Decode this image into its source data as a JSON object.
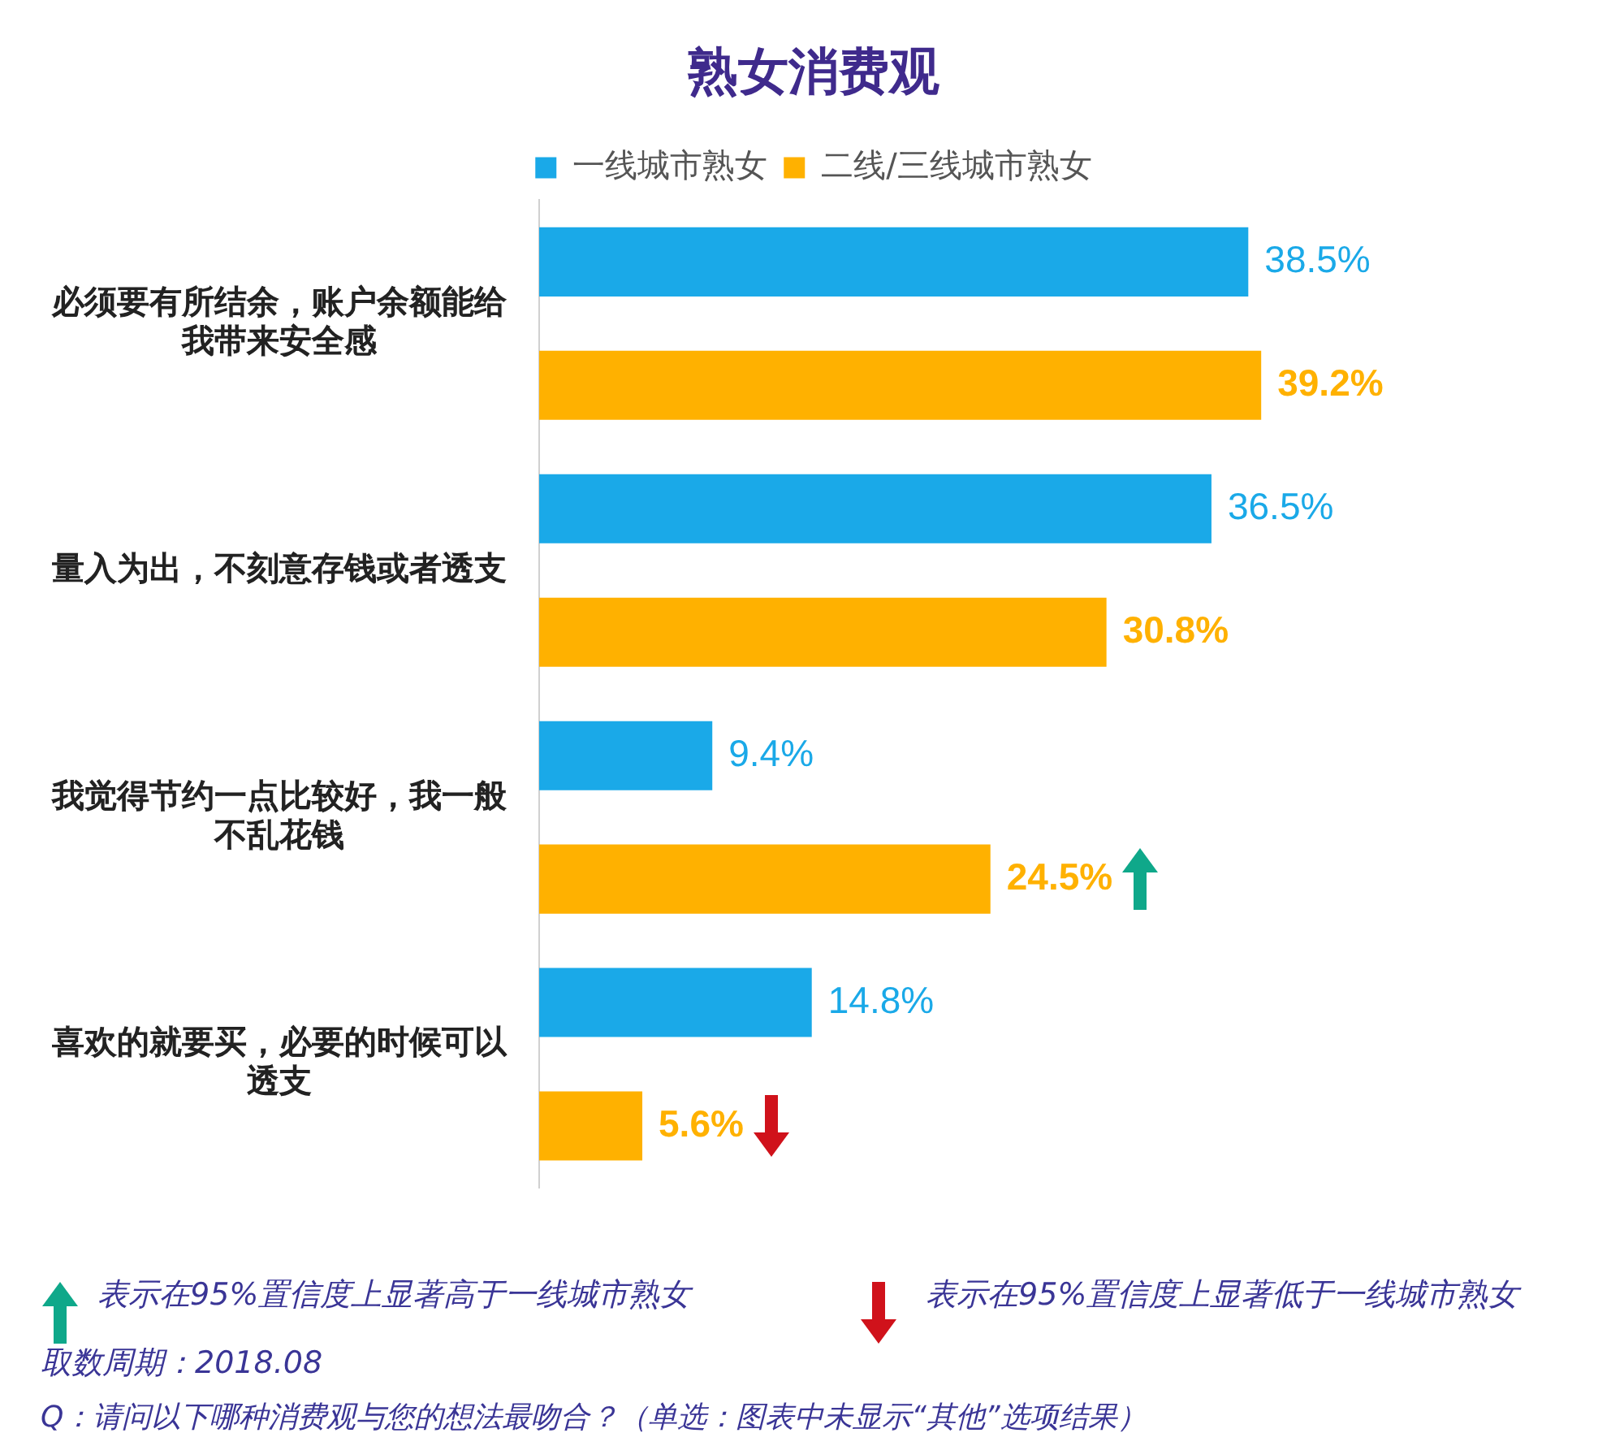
{
  "chart_data": {
    "type": "bar",
    "orientation": "horizontal",
    "title": "熟女消费观",
    "legend": "top",
    "categories": [
      "必须要有所结余，账户余额能给我带来安全感",
      "量入为出，不刻意存钱或者透支",
      "我觉得节约一点比较好，我一般不乱花钱",
      "喜欢的就要买，必要的时候可以透支"
    ],
    "series": [
      {
        "name": "一线城市熟女",
        "color": "#1aa9e8",
        "values": [
          38.5,
          36.5,
          9.4,
          14.8
        ],
        "value_labels": [
          "38.5%",
          "36.5%",
          "9.4%",
          "14.8%"
        ]
      },
      {
        "name": "二线/三线城市熟女",
        "color": "#ffb100",
        "values": [
          39.2,
          30.8,
          24.5,
          5.6
        ],
        "value_labels": [
          "39.2%",
          "30.8%",
          "24.5%",
          "5.6%"
        ]
      }
    ],
    "annotations": [
      "表示在95%置信度上显著高于一线城市熟女",
      "表示在95%置信度上显著低于一线城市熟女",
      "取数周期：2018.08",
      "Q：请问以下哪种消费观与您的想法最吻合？（单选：图表中未显示“其他”选项结果）"
    ]
  }
}
